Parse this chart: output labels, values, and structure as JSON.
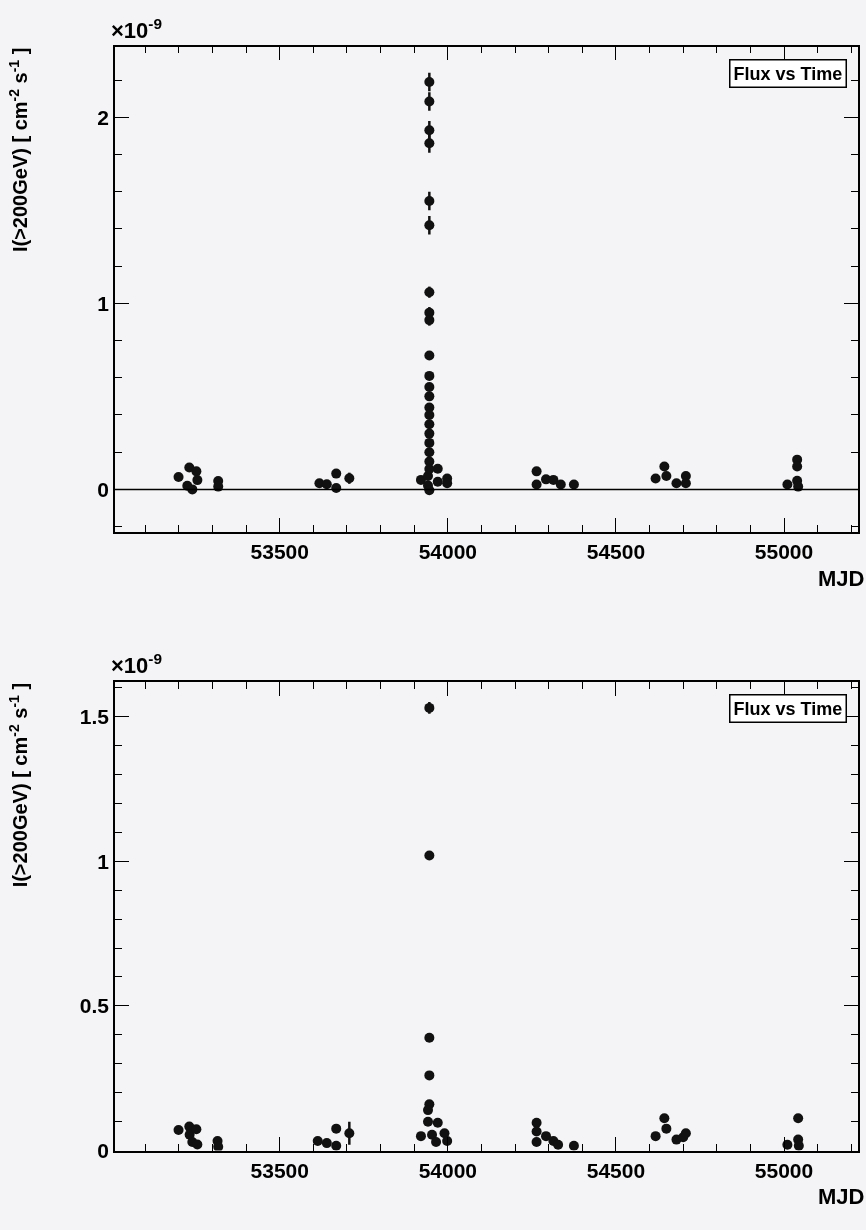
{
  "chart_data": [
    {
      "type": "scatter",
      "title": "Flux vs Time",
      "xlabel": "MJD",
      "ylabel": "I(>200GeV) [ cm$^{-2}$ s$^{-1}$ ]",
      "annotations": [
        "×10$^{-9}$"
      ],
      "marker": "circle",
      "grid": false,
      "xlim": [
        53010,
        55220
      ],
      "xticks": [
        53500,
        54000,
        54500,
        55000
      ],
      "ylim": [
        -0.23,
        2.38
      ],
      "yticks": [
        0,
        1,
        2
      ],
      "ref_lines": [
        {
          "axis": "y",
          "value": 0,
          "color": "#000000"
        }
      ],
      "series": [
        {
          "color": "#111111",
          "x": [
            53199,
            53231,
            53252,
            53225,
            53240,
            53255,
            53317,
            53317,
            53618,
            53640,
            53668,
            53668,
            53707,
            53920,
            53941,
            53941,
            53945,
            53970,
            53970,
            53998,
            53998,
            53945,
            53945,
            53945,
            53945,
            53945,
            53945,
            53945,
            53945,
            53945,
            53945,
            53945,
            53945,
            53945,
            53945,
            53945,
            53945,
            53945,
            53945,
            53945,
            53945,
            53945,
            54264,
            54264,
            54292,
            54314,
            54336,
            54375,
            54618,
            54644,
            54650,
            54680,
            54708,
            54708,
            55010,
            55039,
            55039,
            55039,
            55042
          ],
          "values": [
            0.067,
            0.118,
            0.097,
            0.02,
            0.0,
            0.05,
            0.045,
            0.015,
            0.033,
            0.028,
            0.085,
            0.008,
            0.06,
            0.051,
            0.072,
            0.021,
            -0.005,
            0.111,
            0.041,
            0.059,
            0.033,
            2.19,
            2.085,
            1.93,
            1.86,
            1.55,
            1.42,
            1.06,
            0.95,
            0.91,
            0.72,
            0.61,
            0.55,
            0.5,
            0.44,
            0.4,
            0.35,
            0.3,
            0.25,
            0.2,
            0.15,
            0.11,
            0.097,
            0.026,
            0.054,
            0.051,
            0.026,
            0.026,
            0.059,
            0.123,
            0.072,
            0.033,
            0.072,
            0.033,
            0.026,
            0.16,
            0.123,
            0.046,
            0.015
          ],
          "errors": [
            null,
            null,
            null,
            null,
            null,
            null,
            null,
            null,
            null,
            null,
            null,
            null,
            0.03,
            null,
            null,
            null,
            null,
            null,
            null,
            null,
            null,
            0.05,
            0.05,
            0.05,
            0.05,
            0.05,
            0.05,
            0.03,
            0.03,
            0.03,
            null,
            null,
            null,
            null,
            null,
            null,
            null,
            null,
            null,
            null,
            null,
            null,
            null,
            null,
            null,
            null,
            null,
            null,
            null,
            null,
            null,
            null,
            null,
            null,
            null,
            null,
            null,
            null,
            null
          ]
        }
      ]
    },
    {
      "type": "scatter",
      "title": "Flux vs Time",
      "xlabel": "MJD",
      "ylabel": "I(>200GeV) [ cm$^{-2}$ s$^{-1}$ ]",
      "annotations": [
        "×10$^{-9}$"
      ],
      "marker": "circle",
      "grid": false,
      "xlim": [
        53010,
        55220
      ],
      "xticks": [
        53500,
        54000,
        54500,
        55000
      ],
      "ylim": [
        0,
        1.62
      ],
      "yticks": [
        0,
        0.5,
        1,
        1.5
      ],
      "series": [
        {
          "color": "#111111",
          "x": [
            53199,
            53231,
            53232,
            53252,
            53240,
            53255,
            53315,
            53317,
            53613,
            53640,
            53668,
            53668,
            53707,
            53945,
            53945,
            53945,
            53945,
            53945,
            53941,
            53941,
            53970,
            53920,
            53953,
            53990,
            53998,
            53965,
            54264,
            54264,
            54264,
            54292,
            54314,
            54328,
            54375,
            54618,
            54644,
            54650,
            54680,
            54700,
            54708,
            55010,
            55039,
            55042,
            55042,
            55044
          ],
          "values": [
            0.071,
            0.083,
            0.055,
            0.074,
            0.03,
            0.021,
            0.033,
            0.013,
            0.033,
            0.026,
            0.076,
            0.017,
            0.06,
            1.53,
            1.02,
            0.39,
            0.26,
            0.16,
            0.14,
            0.1,
            0.096,
            0.05,
            0.055,
            0.06,
            0.033,
            0.03,
            0.096,
            0.066,
            0.03,
            0.05,
            0.033,
            0.02,
            0.017,
            0.05,
            0.112,
            0.076,
            0.038,
            0.046,
            0.06,
            0.02,
            null,
            0.112,
            0.038,
            0.017
          ],
          "errors": [
            null,
            null,
            null,
            null,
            null,
            null,
            null,
            null,
            null,
            null,
            null,
            null,
            0.04,
            0.02,
            null,
            null,
            null,
            null,
            null,
            null,
            null,
            null,
            null,
            null,
            null,
            null,
            null,
            null,
            null,
            null,
            null,
            null,
            null,
            null,
            null,
            null,
            null,
            null,
            null,
            null,
            null,
            null,
            null,
            null
          ]
        }
      ]
    }
  ]
}
